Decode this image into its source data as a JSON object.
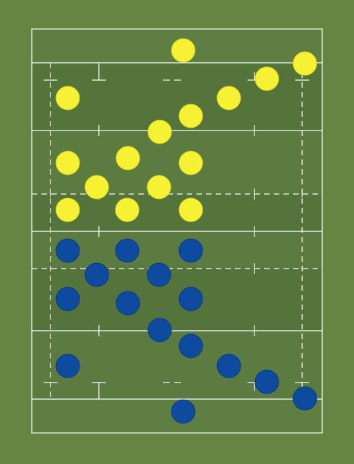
{
  "pitch": {
    "background_color": "#668442",
    "field_color": "#5b7b40",
    "stripe_color": "#52733a",
    "line_color": "#ffffff"
  },
  "teams": [
    {
      "name": "",
      "color": "#f6f133",
      "edge_color": "#d9d21e",
      "players": 15
    },
    {
      "name": "",
      "color": "#0d4aa0",
      "edge_color": "#0a3b82",
      "players": 15
    }
  ]
}
